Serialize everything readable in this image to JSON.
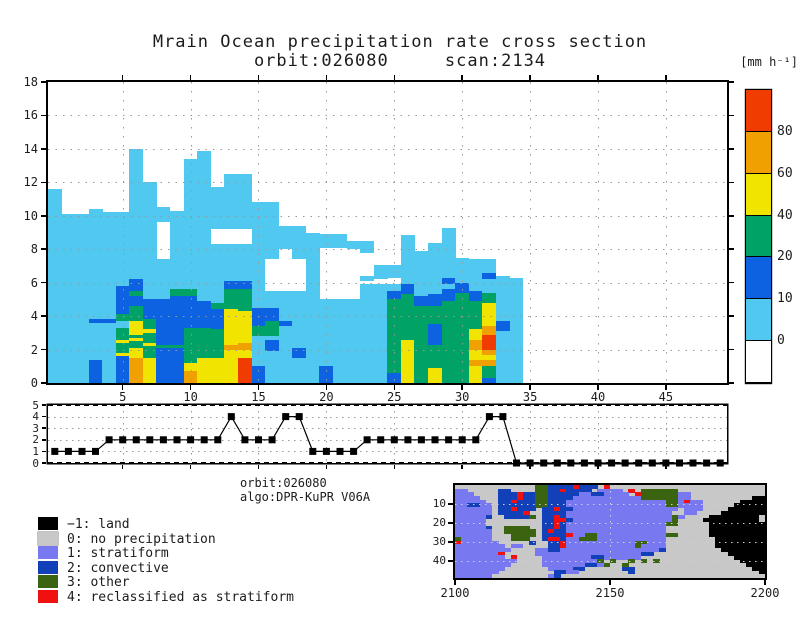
{
  "header": {
    "title": "Mrain Ocean precipitation rate cross section",
    "subtitle": "orbit:026080     scan:2134"
  },
  "annotations": {
    "orbit": "orbit:026080",
    "algo": "algo:DPR-KuPR V06A"
  },
  "colorbar": {
    "unit": "[mm h⁻¹]",
    "tick_labels": [
      "80",
      "60",
      "40",
      "20",
      "10",
      "0"
    ],
    "colors_top_to_bottom": [
      "#f03c00",
      "#f0a000",
      "#f0e400",
      "#00a365",
      "#0d62e2",
      "#50c8f0",
      "#ffffff"
    ]
  },
  "legend": {
    "entries": [
      {
        "label": "−1: land",
        "color": "#000000"
      },
      {
        "label": "0: no precipitation",
        "color": "#c8c8c8"
      },
      {
        "label": "1: stratiform",
        "color": "#7878f0"
      },
      {
        "label": "2: convective",
        "color": "#1240b8"
      },
      {
        "label": "3: other",
        "color": "#3a6410"
      },
      {
        "label": "4: reclassified as stratiform",
        "color": "#f01010"
      }
    ]
  },
  "chart_data": [
    {
      "type": "heatmap",
      "name": "precip-rate-cross-section",
      "title": "Mrain Ocean precipitation rate cross section",
      "xlabel": "",
      "ylabel": "",
      "xlim": [
        -0.5,
        49.5
      ],
      "ylim": [
        0,
        18
      ],
      "x_ticks": [
        5,
        10,
        15,
        20,
        25,
        30,
        35,
        40,
        45
      ],
      "y_ticks": [
        0,
        2,
        4,
        6,
        8,
        10,
        12,
        14,
        16,
        18
      ],
      "grid": "dotted",
      "units": "mm h-1",
      "level_colors": [
        "#50c8f0",
        "#0d62e2",
        "#00a365",
        "#f0e400",
        "#f0a000",
        "#f03c00"
      ],
      "level_ranges_mm_h": [
        [
          0,
          10
        ],
        [
          10,
          20
        ],
        [
          20,
          40
        ],
        [
          40,
          60
        ],
        [
          60,
          80
        ],
        [
          80,
          null
        ]
      ],
      "rays": [
        [
          [
            0,
            11.6,
            0
          ]
        ],
        [
          [
            0,
            10.1,
            0
          ]
        ],
        [
          [
            0,
            10.1,
            0
          ]
        ],
        [
          [
            0,
            10.4,
            0
          ],
          [
            0,
            1.4,
            1
          ],
          [
            3.6,
            3.85,
            1
          ]
        ],
        [
          [
            0,
            10.2,
            0
          ],
          [
            3.6,
            3.85,
            1
          ]
        ],
        [
          [
            0,
            10.2,
            0
          ],
          [
            0,
            1.6,
            1
          ],
          [
            1.6,
            1.8,
            3
          ],
          [
            1.8,
            2.4,
            2
          ],
          [
            2.4,
            2.6,
            3
          ],
          [
            2.6,
            3.3,
            2
          ],
          [
            3.7,
            4.1,
            2
          ],
          [
            4.1,
            5.8,
            1
          ]
        ],
        [
          [
            0,
            14.0,
            0
          ],
          [
            0,
            1.5,
            4
          ],
          [
            1.5,
            2.1,
            3
          ],
          [
            2.1,
            2.5,
            2
          ],
          [
            2.5,
            2.7,
            3
          ],
          [
            2.7,
            2.9,
            2
          ],
          [
            2.9,
            3.7,
            3
          ],
          [
            3.7,
            4.6,
            2
          ],
          [
            4.6,
            5.2,
            1
          ],
          [
            5.2,
            5.5,
            2
          ],
          [
            5.5,
            6.2,
            1
          ]
        ],
        [
          [
            0,
            12.0,
            0
          ],
          [
            0,
            1.5,
            3
          ],
          [
            1.5,
            3.8,
            2
          ],
          [
            2.2,
            2.4,
            3
          ],
          [
            3.0,
            3.2,
            3
          ],
          [
            3.8,
            5.0,
            1
          ]
        ],
        [
          [
            0,
            7.4,
            0
          ],
          [
            9.6,
            10.5,
            0
          ],
          [
            0,
            5.0,
            1
          ],
          [
            2.1,
            2.3,
            2
          ]
        ],
        [
          [
            0,
            10.3,
            0
          ],
          [
            0,
            5.2,
            1
          ],
          [
            2.1,
            2.3,
            2
          ],
          [
            5.2,
            5.6,
            2
          ]
        ],
        [
          [
            0,
            13.4,
            0
          ],
          [
            0,
            0.7,
            4
          ],
          [
            0.7,
            1.2,
            3
          ],
          [
            1.2,
            3.3,
            2
          ],
          [
            3.3,
            5.2,
            1
          ],
          [
            5.2,
            5.6,
            2
          ]
        ],
        [
          [
            0,
            13.9,
            0
          ],
          [
            0,
            1.5,
            3
          ],
          [
            1.5,
            3.3,
            2
          ],
          [
            3.3,
            4.9,
            1
          ]
        ],
        [
          [
            0,
            8.3,
            0
          ],
          [
            9.2,
            11.7,
            0
          ],
          [
            0,
            1.5,
            3
          ],
          [
            1.5,
            3.2,
            2
          ],
          [
            3.2,
            4.4,
            1
          ],
          [
            4.4,
            4.8,
            2
          ]
        ],
        [
          [
            0,
            8.3,
            0
          ],
          [
            9.2,
            12.5,
            0
          ],
          [
            0,
            4.4,
            3
          ],
          [
            2.0,
            2.3,
            4
          ],
          [
            4.4,
            5.6,
            2
          ],
          [
            5.6,
            6.1,
            1
          ]
        ],
        [
          [
            0,
            8.3,
            0
          ],
          [
            9.2,
            12.5,
            0
          ],
          [
            0,
            1.5,
            5
          ],
          [
            1.5,
            4.3,
            3
          ],
          [
            2.0,
            2.4,
            4
          ],
          [
            4.3,
            5.6,
            2
          ],
          [
            5.6,
            6.1,
            1
          ]
        ],
        [
          [
            0,
            10.8,
            0
          ],
          [
            0,
            1.0,
            1
          ],
          [
            2.8,
            3.4,
            2
          ],
          [
            3.4,
            4.5,
            1
          ]
        ],
        [
          [
            0,
            5.5,
            0
          ],
          [
            7.4,
            10.8,
            0
          ],
          [
            1.9,
            2.6,
            1
          ],
          [
            2.8,
            3.7,
            2
          ],
          [
            3.7,
            4.5,
            1
          ]
        ],
        [
          [
            0,
            5.5,
            0
          ],
          [
            8.0,
            9.4,
            0
          ],
          [
            3.4,
            3.7,
            1
          ]
        ],
        [
          [
            0,
            5.5,
            0
          ],
          [
            7.4,
            9.4,
            0
          ],
          [
            1.5,
            2.1,
            1
          ]
        ],
        [
          [
            0,
            9.0,
            0
          ]
        ],
        [
          [
            0,
            5.0,
            0
          ],
          [
            8.05,
            8.9,
            0
          ],
          [
            0,
            1.0,
            1
          ]
        ],
        [
          [
            0,
            5.0,
            0
          ],
          [
            8.05,
            8.9,
            0
          ]
        ],
        [
          [
            0,
            5.0,
            0
          ],
          [
            8.0,
            8.5,
            0
          ]
        ],
        [
          [
            0,
            5.9,
            0
          ],
          [
            6.1,
            6.4,
            0
          ],
          [
            7.8,
            8.5,
            0
          ]
        ],
        [
          [
            0,
            5.9,
            0
          ],
          [
            6.2,
            7.05,
            0
          ]
        ],
        [
          [
            0,
            5.9,
            0
          ],
          [
            6.3,
            7.05,
            0
          ],
          [
            0,
            0.6,
            1
          ],
          [
            0.6,
            5.0,
            2
          ],
          [
            5.0,
            5.5,
            1
          ]
        ],
        [
          [
            0,
            8.85,
            0
          ],
          [
            0,
            2.6,
            3
          ],
          [
            2.6,
            5.3,
            2
          ],
          [
            5.3,
            5.9,
            1
          ]
        ],
        [
          [
            0,
            7.9,
            0
          ],
          [
            0,
            4.6,
            2
          ],
          [
            4.6,
            5.2,
            1
          ]
        ],
        [
          [
            0,
            8.4,
            0
          ],
          [
            0,
            0.9,
            3
          ],
          [
            0.9,
            4.6,
            2
          ],
          [
            2.3,
            3.5,
            1
          ],
          [
            4.6,
            5.3,
            1
          ]
        ],
        [
          [
            0,
            9.25,
            0
          ],
          [
            0,
            4.9,
            2
          ],
          [
            4.9,
            5.6,
            1
          ],
          [
            5.9,
            6.3,
            1
          ]
        ],
        [
          [
            0,
            7.5,
            0
          ],
          [
            0,
            5.4,
            2
          ],
          [
            5.4,
            6.0,
            1
          ]
        ],
        [
          [
            0,
            7.4,
            0
          ],
          [
            0,
            3.2,
            3
          ],
          [
            1.0,
            1.4,
            4
          ],
          [
            2.0,
            2.6,
            4
          ],
          [
            3.2,
            4.9,
            2
          ],
          [
            4.9,
            5.5,
            1
          ]
        ],
        [
          [
            0,
            7.4,
            0
          ],
          [
            0,
            0.3,
            1
          ],
          [
            0.3,
            1.0,
            2
          ],
          [
            1.0,
            1.4,
            4
          ],
          [
            1.4,
            1.7,
            3
          ],
          [
            1.7,
            2.0,
            4
          ],
          [
            2.0,
            2.9,
            5
          ],
          [
            2.9,
            3.4,
            4
          ],
          [
            3.4,
            4.8,
            3
          ],
          [
            4.8,
            5.4,
            2
          ],
          [
            6.2,
            6.6,
            1
          ]
        ],
        [
          [
            0,
            6.4,
            0
          ],
          [
            3.1,
            3.7,
            1
          ]
        ],
        [
          [
            0,
            6.3,
            0
          ]
        ],
        [],
        [],
        [],
        [],
        [],
        [],
        [],
        [],
        [],
        [],
        [],
        [],
        [],
        [],
        []
      ]
    },
    {
      "type": "line",
      "name": "rain-type-flag-strip",
      "marker": "square",
      "xlim": [
        -0.5,
        49.5
      ],
      "ylim": [
        0,
        5
      ],
      "y_ticks": [
        0,
        1,
        2,
        3,
        4,
        5
      ],
      "x_ticks": [
        5,
        10,
        15,
        20,
        25,
        30,
        35,
        40,
        45
      ],
      "values": [
        1,
        1,
        1,
        1,
        2,
        2,
        2,
        2,
        2,
        2,
        2,
        2,
        2,
        4,
        2,
        2,
        2,
        4,
        4,
        1,
        1,
        1,
        1,
        2,
        2,
        2,
        2,
        2,
        2,
        2,
        2,
        2,
        4,
        4,
        0,
        0,
        0,
        0,
        0,
        0,
        0,
        0,
        0,
        0,
        0,
        0,
        0,
        0,
        0,
        0
      ]
    },
    {
      "type": "heatmap",
      "name": "rain-type-swath-map",
      "xlim": [
        2100,
        2200
      ],
      "ylim_top_to_bottom": [
        0,
        49
      ],
      "x_ticks": [
        2100,
        2150,
        2200
      ],
      "y_ticks": [
        10,
        20,
        30,
        40
      ],
      "cell_colors": {
        ".": "#c8c8c8",
        "s": "#7878f0",
        "c": "#1240b8",
        "o": "#3a6410",
        "r": "#f01010",
        "k": "#000000"
      },
      "rows": [
        ".............ooccccrccc.r.........................",
        "ss.....cc....ooccrcccc.ssss.r.oooooo..............",
        "sss....cccrccoocccccssccssss.rooooooss............",
        "ssss...cccrccooccccsssssssssssooooooss..........kk",
        "sssss..ccrcccoocccssssssssssssssssoosrss......kkkk",
        "ssccss.ccccccoocccssssssssssssssssoossss.....kkkkk",
        "ssssss.ccrccc.ccrccsssssssssssssssss.sss....kkkkkk",
        "ssssss.ccccr..ccccsssssssssssssssss..ss....kkkkkkk",
        "sssssc..cccco.ccrcsssssssssssssssssos....kkkkkkkk",
        "sssss.........ccrrcsssssssssssssssso....kkkkkkkkk",
        "sssss.........ccrcssssssssssssssssoo.....kkkkkkkkk",
        "sssssc..oooo..ccrcssssssssssssssss.......kkkkkkkkk",
        "ssssss..ooooo.crccssssssssssssssss.......kkkkkkkkk",
        "ssssss...oooo.ccccrssoosssssssssssoo.....kkkkkkkkk",
        "osssss...ooo..crrcssooosssssssssss........kkkkkkkk",
        "rssssss.....c..ccrsssssssssssoosss........kkkkkkkk",
        "ssssssss.ss....ccrsssssssssssossss........kkkkkkkk",
        "sssssssss....ssccssssssssssssssssc.........kkkkkkk",
        "sssssssr.....ssssssssssssssssscc............kkkkkk",
        "ssssssss.r....ssssssssccssssss...............kkkkk",
        "ssssssssss....ssssssssso.o..o.o.o.............kkkk",
        "sssssssss.....sssssssccso..o...................kkk",
        "ssssssss.......sssscc......cc...................kk",
        "sssssss.........ccss........c....................k",
        "ssssss.........sc................................."
      ]
    }
  ]
}
